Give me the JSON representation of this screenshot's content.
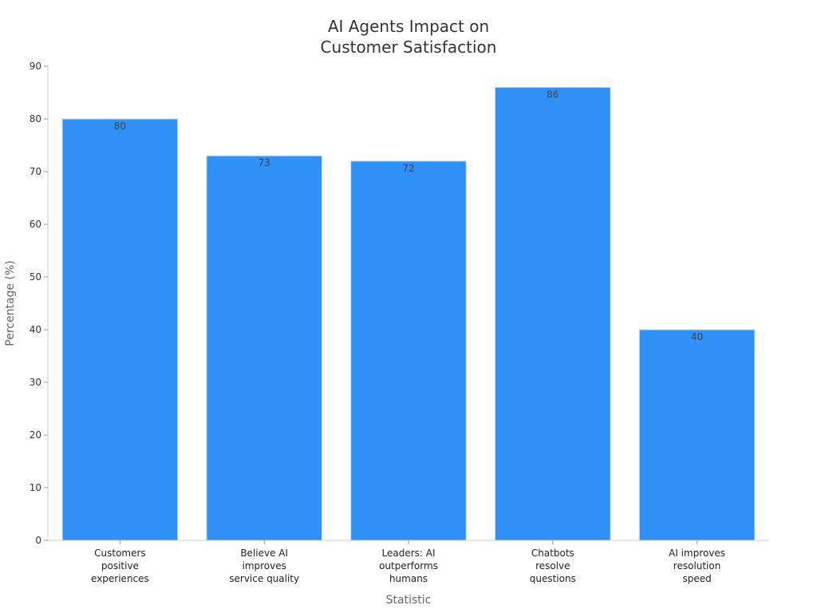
{
  "chart_data": {
    "type": "bar",
    "title": [
      "AI Agents Impact on",
      "Customer Satisfaction"
    ],
    "xlabel": "Statistic",
    "ylabel": "Percentage (%)",
    "categories": [
      [
        "Customers",
        "positive",
        "experiences"
      ],
      [
        "Believe AI",
        "improves",
        "service quality"
      ],
      [
        "Leaders: AI",
        "outperforms",
        "humans"
      ],
      [
        "Chatbots",
        "resolve",
        "questions"
      ],
      [
        "AI improves",
        "resolution",
        "speed"
      ]
    ],
    "values": [
      80,
      73,
      72,
      86,
      40
    ],
    "ylim": [
      0,
      90
    ],
    "yticks": [
      0,
      10,
      20,
      30,
      40,
      50,
      60,
      70,
      80,
      90
    ],
    "grid": false,
    "legend": "none",
    "bar_color": "#2f91f5",
    "bar_edge_color": "#dddddd"
  }
}
